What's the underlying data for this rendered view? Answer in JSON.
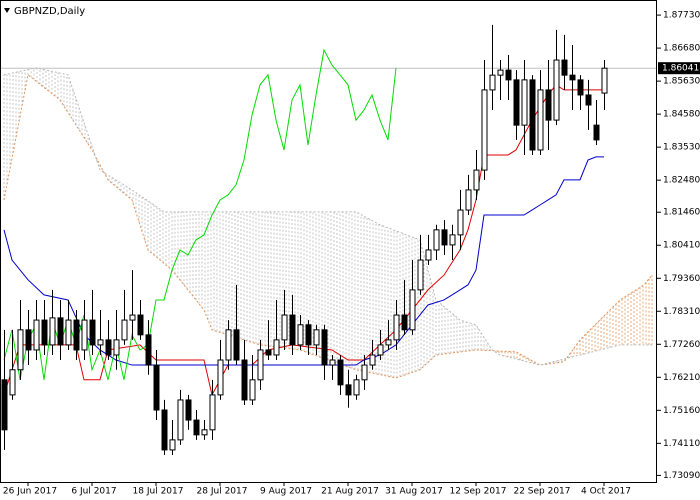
{
  "chart_data": {
    "type": "candlestick",
    "title": "GBPNZD,Daily",
    "categories": [
      null,
      null,
      null,
      "26 Jun 2017",
      null,
      null,
      null,
      null,
      null,
      null,
      null,
      "6 Jul 2017",
      null,
      null,
      null,
      null,
      null,
      null,
      null,
      "18 Jul 2017",
      null,
      null,
      null,
      null,
      null,
      null,
      null,
      "28 Jul 2017",
      null,
      null,
      null,
      null,
      null,
      null,
      null,
      "9 Aug 2017",
      null,
      null,
      null,
      null,
      null,
      null,
      null,
      "21 Aug 2017",
      null,
      null,
      null,
      null,
      null,
      null,
      null,
      "31 Aug 2017",
      null,
      null,
      null,
      null,
      null,
      null,
      null,
      "12 Sep 2017",
      null,
      null,
      null,
      null,
      null,
      null,
      null,
      "22 Sep 2017",
      null,
      null,
      null,
      null,
      null,
      null,
      null,
      "4 Oct 2017"
    ],
    "open": [
      1.7613,
      1.7565,
      1.7645,
      1.7772,
      1.7708,
      1.7803,
      1.7724,
      1.781,
      1.7724,
      1.7803,
      1.7708,
      1.7803,
      1.7724,
      1.774,
      1.7692,
      1.774,
      1.7803,
      1.7819,
      1.7756,
      1.766,
      1.7517,
      1.739,
      1.7422,
      1.7549,
      1.7485,
      1.7438,
      1.7454,
      1.7565,
      1.7676,
      1.7772,
      1.7676,
      1.7549,
      1.7613,
      1.7708,
      1.7692,
      1.774,
      1.7819,
      1.7724,
      1.7788,
      1.7724,
      1.7772,
      1.766,
      1.7676,
      1.7597,
      1.7565,
      1.7613,
      1.766,
      1.7692,
      1.7724,
      1.774,
      1.7819,
      1.7772,
      1.7899,
      1.7994,
      1.8026,
      1.809,
      1.8042,
      1.8074,
      1.8153,
      1.8217,
      1.828,
      1.8535,
      1.8582,
      1.8598,
      1.8567,
      1.8423,
      1.8567,
      1.8344,
      1.8535,
      1.8439,
      1.863,
      1.8582,
      1.8567,
      1.8519,
      1.8423,
      1.8525
    ],
    "high": [
      1.7772,
      1.7772,
      1.7867,
      1.7835,
      1.7867,
      1.7867,
      1.7899,
      1.7867,
      1.7867,
      1.7835,
      1.7867,
      1.7899,
      1.7835,
      1.7803,
      1.7835,
      1.7899,
      1.7962,
      1.7867,
      1.7803,
      1.7708,
      1.7549,
      1.7485,
      1.7581,
      1.7565,
      1.7517,
      1.7485,
      1.7613,
      1.774,
      1.7803,
      1.7915,
      1.774,
      1.7692,
      1.774,
      1.7803,
      1.7867,
      1.7899,
      1.7883,
      1.7819,
      1.7803,
      1.7788,
      1.7788,
      1.7692,
      1.7692,
      1.7645,
      1.7629,
      1.7692,
      1.774,
      1.7772,
      1.7803,
      1.7867,
      1.7931,
      1.7994,
      1.8074,
      1.8074,
      1.8106,
      1.8121,
      1.8106,
      1.8217,
      1.8265,
      1.8344,
      1.863,
      1.8742,
      1.863,
      1.8646,
      1.8598,
      1.863,
      1.8582,
      1.8598,
      1.863,
      1.8726,
      1.871,
      1.8678,
      1.8582,
      1.8567,
      1.8503,
      1.863
    ],
    "low": [
      1.739,
      1.7549,
      1.7613,
      1.766,
      1.7676,
      1.7692,
      1.7692,
      1.7676,
      1.7708,
      1.7676,
      1.7676,
      1.7692,
      1.7692,
      1.7676,
      1.7645,
      1.7724,
      1.774,
      1.774,
      1.7629,
      1.7485,
      1.7374,
      1.7374,
      1.7406,
      1.7454,
      1.7422,
      1.7422,
      1.7422,
      1.7549,
      1.7645,
      1.766,
      1.7533,
      1.7533,
      1.7581,
      1.7676,
      1.7676,
      1.7708,
      1.7692,
      1.7708,
      1.7692,
      1.7692,
      1.7613,
      1.7613,
      1.7565,
      1.7524,
      1.7549,
      1.7581,
      1.7645,
      1.7676,
      1.7708,
      1.7708,
      1.7756,
      1.7756,
      1.7883,
      1.7978,
      1.7994,
      1.801,
      1.7994,
      1.8026,
      1.8137,
      1.8185,
      1.8249,
      1.8471,
      1.8503,
      1.8503,
      1.8376,
      1.8328,
      1.8328,
      1.8328,
      1.8344,
      1.8423,
      1.8535,
      1.8471,
      1.8471,
      1.8408,
      1.836,
      1.8471
    ],
    "close": [
      1.7454,
      1.7645,
      1.7772,
      1.7708,
      1.7803,
      1.7724,
      1.781,
      1.7724,
      1.7803,
      1.7708,
      1.7803,
      1.7724,
      1.774,
      1.7692,
      1.774,
      1.7803,
      1.7819,
      1.7756,
      1.766,
      1.7517,
      1.739,
      1.7422,
      1.7549,
      1.7485,
      1.7438,
      1.7454,
      1.7565,
      1.7676,
      1.7772,
      1.7676,
      1.7549,
      1.7613,
      1.7708,
      1.7692,
      1.774,
      1.7819,
      1.7724,
      1.7788,
      1.7724,
      1.7772,
      1.766,
      1.7676,
      1.7597,
      1.7565,
      1.7613,
      1.766,
      1.7692,
      1.7724,
      1.774,
      1.7819,
      1.7772,
      1.7899,
      1.7994,
      1.8026,
      1.809,
      1.8042,
      1.8074,
      1.8153,
      1.8217,
      1.828,
      1.8535,
      1.8582,
      1.8598,
      1.8567,
      1.8423,
      1.8567,
      1.8344,
      1.8535,
      1.8439,
      1.863,
      1.8582,
      1.8567,
      1.8519,
      1.8487,
      1.8376,
      1.86041
    ],
    "bull_color": "#ffffff",
    "bear_color": "#000000",
    "xlim": [
      -0.5,
      81.625
    ],
    "ylim": [
      1.7288,
      1.8821
    ],
    "yticks": [
      {
        "value": 1.8773,
        "label": "1.87730"
      },
      {
        "value": 1.8668,
        "label": "1.86680"
      },
      {
        "value": 1.8563,
        "label": "1.85630"
      },
      {
        "value": 1.8458,
        "label": "1.84580"
      },
      {
        "value": 1.8353,
        "label": "1.83530"
      },
      {
        "value": 1.8248,
        "label": "1.82480"
      },
      {
        "value": 1.8146,
        "label": "1.81460"
      },
      {
        "value": 1.8041,
        "label": "1.80410"
      },
      {
        "value": 1.7936,
        "label": "1.79360"
      },
      {
        "value": 1.7831,
        "label": "1.78310"
      },
      {
        "value": 1.7726,
        "label": "1.77260"
      },
      {
        "value": 1.7621,
        "label": "1.76210"
      },
      {
        "value": 1.7516,
        "label": "1.75160"
      },
      {
        "value": 1.7411,
        "label": "1.74110"
      },
      {
        "value": 1.7309,
        "label": "1.73090"
      }
    ],
    "last_price": {
      "value": 1.86041,
      "label": "1.86041"
    },
    "grid": false,
    "lines": [
      {
        "color": "#e00000",
        "x": [
          0,
          2,
          9,
          10,
          12,
          13,
          17,
          19,
          25,
          26,
          28,
          31,
          33,
          36,
          41,
          43,
          45,
          47,
          49,
          51,
          53,
          55,
          57,
          58,
          59,
          60,
          63,
          64,
          66,
          68,
          69,
          70,
          75
        ],
        "values": [
          1.7565,
          1.7724,
          1.7724,
          1.7613,
          1.7613,
          1.7708,
          1.7724,
          1.7676,
          1.7676,
          1.7565,
          1.766,
          1.766,
          1.7708,
          1.7724,
          1.7708,
          1.7676,
          1.7676,
          1.7724,
          1.7772,
          1.7835,
          1.7899,
          1.7946,
          1.8026,
          1.809,
          1.8185,
          1.8328,
          1.8328,
          1.8344,
          1.8439,
          1.8519,
          1.8551,
          1.8535,
          1.8535
        ]
      },
      {
        "color": "#0000cc",
        "x": [
          0,
          1,
          3,
          5,
          8,
          10,
          12,
          14,
          16,
          44,
          45,
          47,
          49,
          51,
          53,
          55,
          57,
          58,
          59,
          60,
          65,
          66,
          67,
          68,
          69,
          70,
          72,
          73,
          74,
          75
        ],
        "values": [
          1.809,
          1.7994,
          1.7931,
          1.7883,
          1.7867,
          1.7756,
          1.7708,
          1.7676,
          1.766,
          1.766,
          1.7676,
          1.7692,
          1.7724,
          1.7788,
          1.7851,
          1.7867,
          1.7899,
          1.7915,
          1.7962,
          1.8137,
          1.8137,
          1.8153,
          1.8169,
          1.8185,
          1.8201,
          1.8249,
          1.8249,
          1.8312,
          1.8322,
          1.8322
        ]
      },
      {
        "color": "#00dd00",
        "x": [
          0,
          1,
          2,
          3,
          4,
          5,
          6,
          7,
          8,
          9,
          10,
          11,
          12,
          13,
          14,
          15,
          16,
          17,
          18,
          19,
          20,
          21,
          22,
          23,
          24,
          25,
          26,
          27,
          28,
          29,
          30,
          31,
          32,
          33,
          34,
          35,
          36,
          37,
          38,
          39,
          40,
          41,
          42,
          43,
          44,
          45,
          46,
          47,
          48,
          49
        ],
        "values": [
          1.7676,
          1.7772,
          1.7613,
          1.774,
          1.7788,
          1.7613,
          1.7803,
          1.7724,
          1.7803,
          1.7724,
          1.7819,
          1.7645,
          1.7708,
          1.7613,
          1.7724,
          1.7613,
          1.7756,
          1.7708,
          1.7724,
          1.7867,
          1.7867,
          1.7962,
          1.8026,
          1.801,
          1.8058,
          1.8074,
          1.8137,
          1.8185,
          1.8201,
          1.8233,
          1.8312,
          1.8455,
          1.8551,
          1.8583,
          1.8439,
          1.8344,
          1.8503,
          1.8551,
          1.836,
          1.8519,
          1.8662,
          1.8614,
          1.8583,
          1.8551,
          1.8439,
          1.8471,
          1.8519,
          1.8439,
          1.8376,
          1.8605
        ]
      }
    ],
    "cloud": {
      "span_a": {
        "color": "#e0945a",
        "x": [
          0,
          3,
          7,
          11,
          13,
          16,
          18,
          21,
          23,
          25,
          26,
          32,
          37,
          44,
          49,
          52,
          54,
          59,
          64,
          67,
          70,
          72,
          77,
          80,
          81
        ],
        "values": [
          1.8185,
          1.8583,
          1.8503,
          1.8344,
          1.8249,
          1.8185,
          1.8026,
          1.7962,
          1.7899,
          1.7835,
          1.7772,
          1.7724,
          1.7708,
          1.7645,
          1.7619,
          1.7645,
          1.7692,
          1.7708,
          1.7702,
          1.766,
          1.767,
          1.774,
          1.7867,
          1.7915,
          1.7946
        ]
      },
      "span_b": {
        "color": "#b8b8b8",
        "x": [
          0,
          4,
          8,
          12,
          16,
          20,
          44,
          47,
          52,
          54,
          57,
          59,
          61,
          62,
          67,
          72,
          77,
          81
        ],
        "values": [
          1.8583,
          1.8605,
          1.8583,
          1.828,
          1.8217,
          1.8147,
          1.8147,
          1.8106,
          1.8058,
          1.7867,
          1.7803,
          1.7788,
          1.7708,
          1.7692,
          1.766,
          1.7692,
          1.7724,
          1.7724
        ]
      }
    }
  }
}
